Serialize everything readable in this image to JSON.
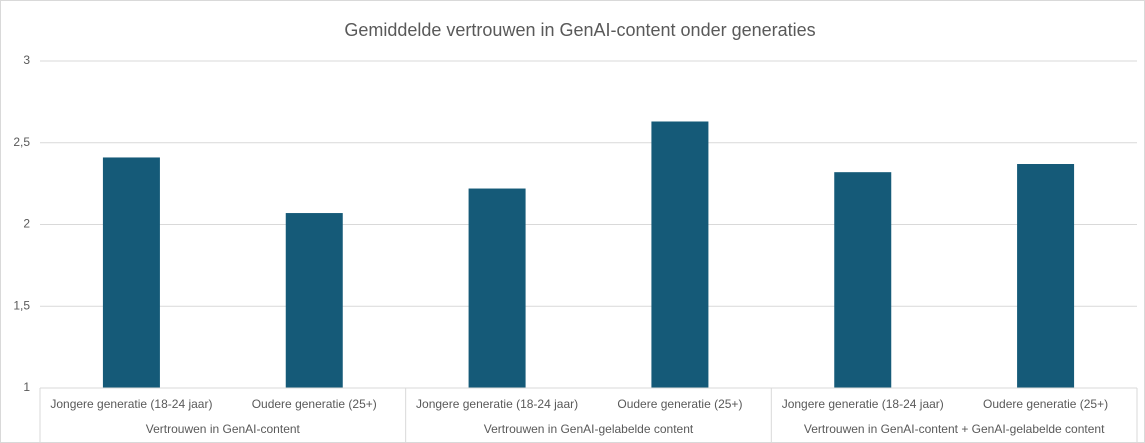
{
  "chart_data": {
    "type": "bar",
    "title": "Gemiddelde vertrouwen in GenAI-content onder generaties",
    "categories": [
      "Jongere generatie (18-24 jaar)",
      "Oudere generatie (25+)",
      "Jongere generatie (18-24 jaar)",
      "Oudere generatie (25+)",
      "Jongere generatie (18-24 jaar)",
      "Oudere generatie (25+)"
    ],
    "groups": [
      "Vertrouwen in GenAI-content",
      "Vertrouwen in GenAI-gelabelde content",
      "Vertrouwen in GenAI-content + GenAI-gelabelde content"
    ],
    "values": [
      2.41,
      2.07,
      2.22,
      2.63,
      2.32,
      2.37
    ],
    "color": "#155a78",
    "ylim": [
      1,
      3
    ],
    "yticks": [
      1,
      {
        "value": 1.5,
        "label": "1,5"
      },
      2,
      {
        "value": 2.5,
        "label": "2,5"
      },
      3
    ],
    "grid": true
  }
}
